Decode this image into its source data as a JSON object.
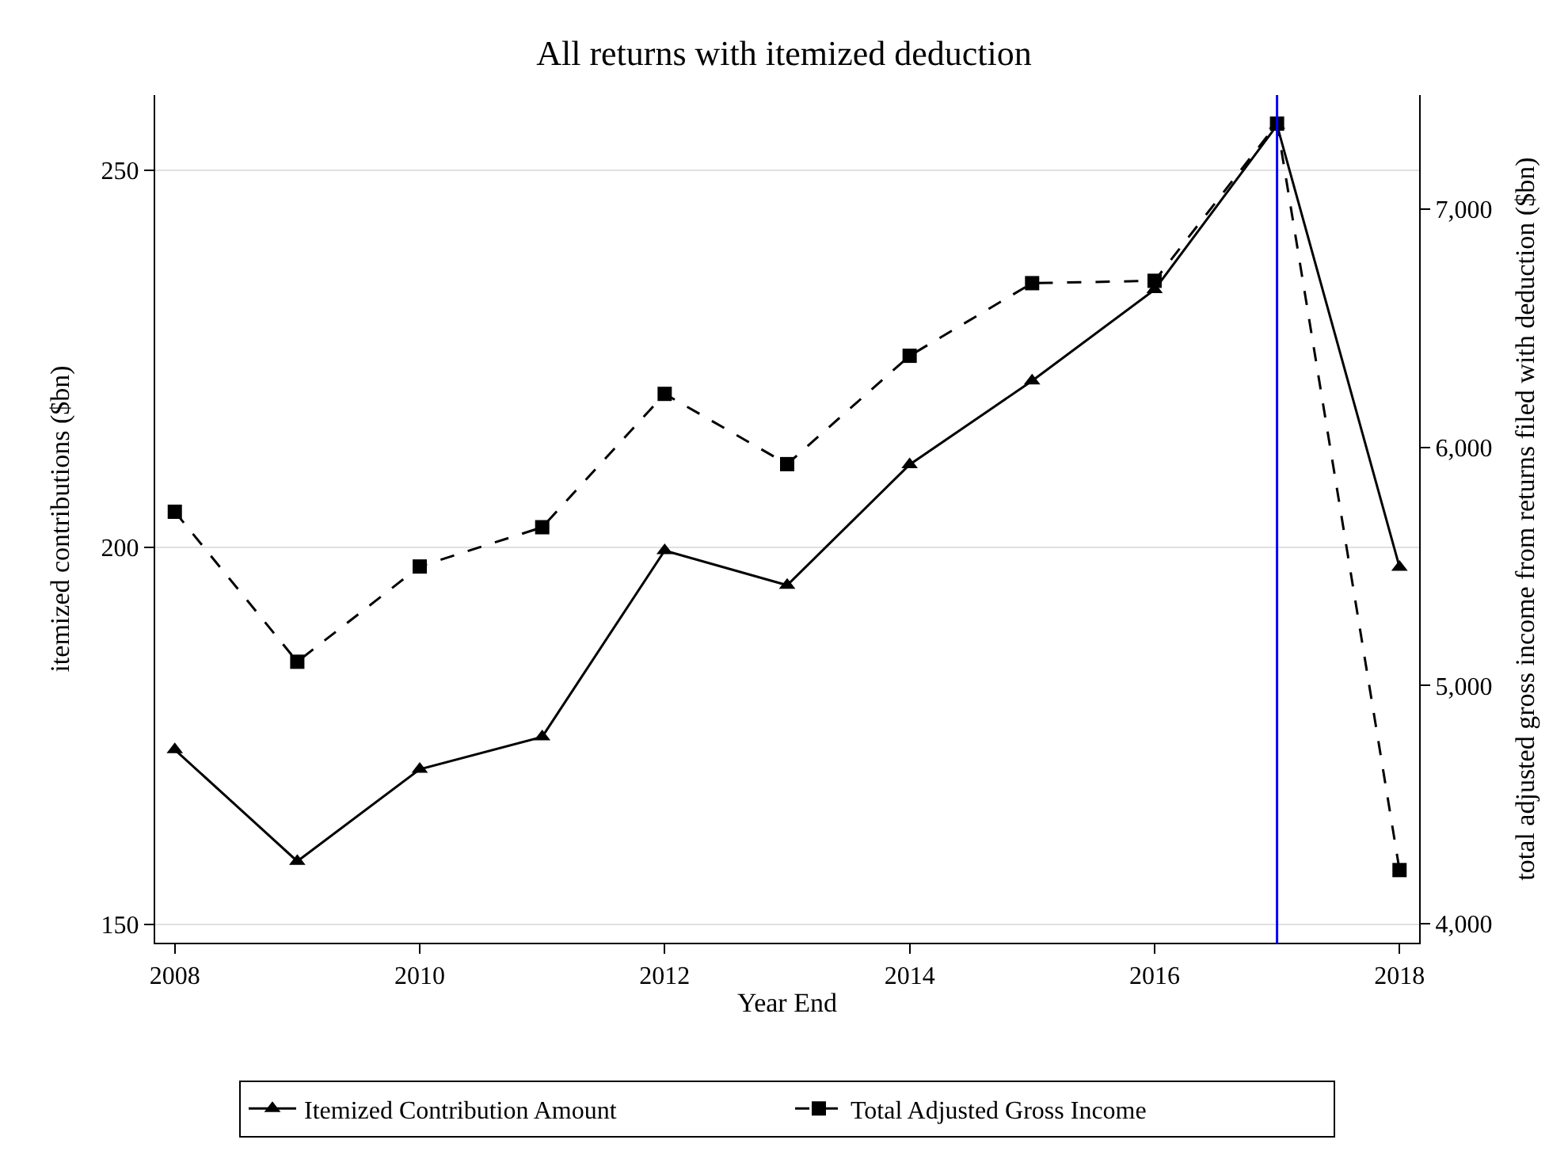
{
  "chart_data": {
    "type": "line",
    "title": "All returns with itemized deduction",
    "xlabel": "Year End",
    "ylabel": "itemized contributions ($bn)",
    "y2label": "total adjusted gross income from returns filed with deduction ($bn)",
    "x": [
      2008,
      2009,
      2010,
      2011,
      2012,
      2013,
      2014,
      2015,
      2016,
      2017,
      2018
    ],
    "series": [
      {
        "name": "Itemized Contribution Amount",
        "color": "#000000",
        "marker": "triangle",
        "line_style": "solid",
        "values": [
          173.2,
          158.4,
          170.6,
          174.9,
          199.6,
          195.0,
          211.0,
          222.1,
          234.2,
          256.0,
          197.4
        ]
      },
      {
        "name": "Total Adjusted Gross Income",
        "color": "#000000",
        "marker": "square",
        "line_style": "dashed",
        "axis": "y2",
        "values": [
          5730,
          5100,
          5500,
          5665,
          6225,
          5930,
          6385,
          6690,
          6700,
          7360,
          4225
        ]
      }
    ],
    "xlim": [
      2007.84,
      2018.16
    ],
    "xticks": [
      2008,
      2010,
      2012,
      2014,
      2016,
      2018
    ],
    "ylim": [
      147.6,
      260
    ],
    "yticks": [
      150,
      200,
      250
    ],
    "y2lim": [
      3920,
      7480
    ],
    "y2ticks": [
      {
        "value": 4000,
        "label": "4,000"
      },
      {
        "value": 5000,
        "label": "5,000"
      },
      {
        "value": 6000,
        "label": "6,000"
      },
      {
        "value": 7000,
        "label": "7,000"
      }
    ],
    "ref_lines": [
      {
        "axis": "x",
        "value": 2017,
        "color": "#0000ff",
        "line_style": "solid"
      }
    ],
    "grid": "y",
    "legend": "bottom"
  }
}
